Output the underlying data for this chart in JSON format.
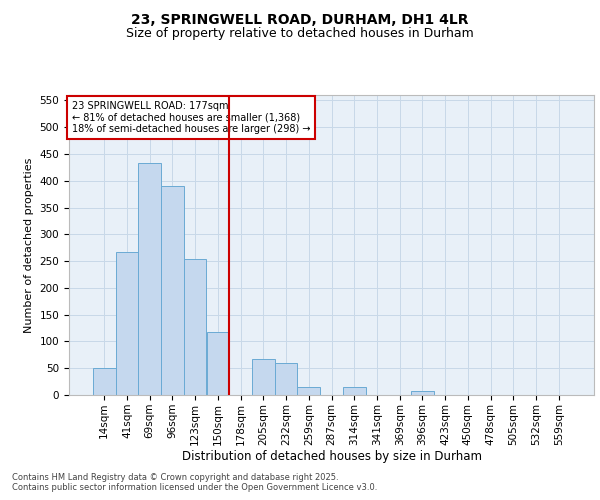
{
  "title": "23, SPRINGWELL ROAD, DURHAM, DH1 4LR",
  "subtitle": "Size of property relative to detached houses in Durham",
  "xlabel": "Distribution of detached houses by size in Durham",
  "ylabel": "Number of detached properties",
  "categories": [
    "14sqm",
    "41sqm",
    "69sqm",
    "96sqm",
    "123sqm",
    "150sqm",
    "178sqm",
    "205sqm",
    "232sqm",
    "259sqm",
    "287sqm",
    "314sqm",
    "341sqm",
    "369sqm",
    "396sqm",
    "423sqm",
    "450sqm",
    "478sqm",
    "505sqm",
    "532sqm",
    "559sqm"
  ],
  "values": [
    50,
    267,
    433,
    390,
    253,
    118,
    0,
    68,
    60,
    15,
    0,
    15,
    0,
    0,
    8,
    0,
    0,
    0,
    0,
    0,
    0
  ],
  "bar_color": "#c5d8ee",
  "bar_edge_color": "#6aaad4",
  "grid_color": "#c8d8e8",
  "background_color": "#e8f0f8",
  "vline_x_index": 6,
  "vline_color": "#cc0000",
  "annotation_text": "23 SPRINGWELL ROAD: 177sqm\n← 81% of detached houses are smaller (1,368)\n18% of semi-detached houses are larger (298) →",
  "annotation_box_color": "#cc0000",
  "ylim": [
    0,
    560
  ],
  "yticks": [
    0,
    50,
    100,
    150,
    200,
    250,
    300,
    350,
    400,
    450,
    500,
    550
  ],
  "footer_text": "Contains HM Land Registry data © Crown copyright and database right 2025.\nContains public sector information licensed under the Open Government Licence v3.0.",
  "title_fontsize": 10,
  "subtitle_fontsize": 9,
  "xlabel_fontsize": 8.5,
  "ylabel_fontsize": 8,
  "tick_fontsize": 7.5,
  "annotation_fontsize": 7,
  "footer_fontsize": 6
}
